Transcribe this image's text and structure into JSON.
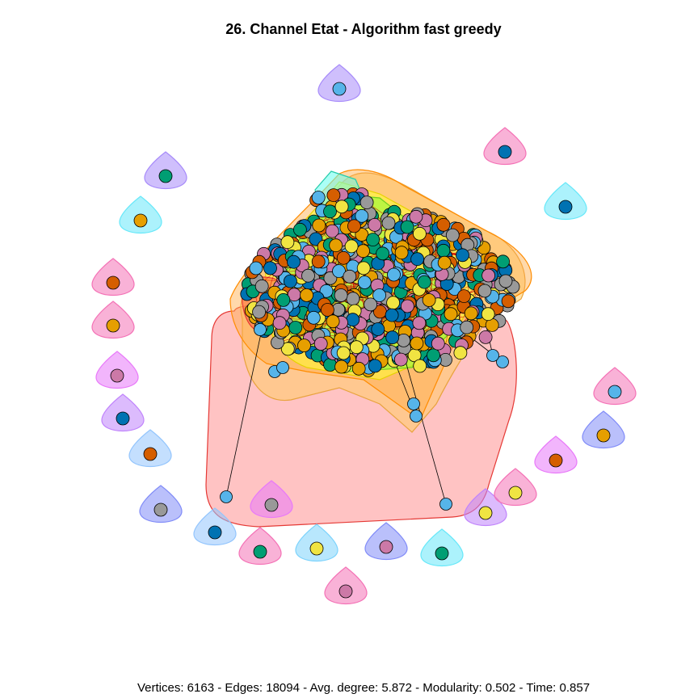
{
  "title": "26. Channel Etat - Algorithm fast greedy",
  "caption": "Vertices: 6163 - Edges: 18094 - Avg. degree: 5.872 - Modularity: 0.502 - Time: 0.857",
  "palette": {
    "node_colors": [
      "#56B4E9",
      "#E69F00",
      "#009E73",
      "#F0E442",
      "#0072B2",
      "#D55E00",
      "#CC79A7",
      "#999999"
    ],
    "hull_colors": [
      "#FF8888",
      "#FFCC66",
      "#FFFF33",
      "#88FF33",
      "#FFAA44",
      "#66FFEE"
    ],
    "edge_color": "#CC0000",
    "node_stroke": "#000000"
  },
  "isolated_modules": [
    {
      "hull": "#A78BFA",
      "node": "#56B4E9"
    },
    {
      "hull": "#F472B6",
      "node": "#0072B2"
    },
    {
      "hull": "#A78BFA",
      "node": "#009E73"
    },
    {
      "hull": "#67E8F9",
      "node": "#0072B2"
    },
    {
      "hull": "#67E8F9",
      "node": "#E69F00"
    },
    {
      "hull": "#F472B6",
      "node": "#D55E00"
    },
    {
      "hull": "#F472B6",
      "node": "#E69F00"
    },
    {
      "hull": "#E879F9",
      "node": "#CC79A7"
    },
    {
      "hull": "#C084FC",
      "node": "#0072B2"
    },
    {
      "hull": "#93C5FD",
      "node": "#D55E00"
    },
    {
      "hull": "#818CF8",
      "node": "#999999"
    },
    {
      "hull": "#93C5FD",
      "node": "#0072B2"
    },
    {
      "hull": "#E879F9",
      "node": "#999999"
    },
    {
      "hull": "#F472B6",
      "node": "#009E73"
    },
    {
      "hull": "#7DD3FC",
      "node": "#F0E442"
    },
    {
      "hull": "#F472B6",
      "node": "#CC79A7"
    },
    {
      "hull": "#818CF8",
      "node": "#CC79A7"
    },
    {
      "hull": "#67E8F9",
      "node": "#009E73"
    },
    {
      "hull": "#C084FC",
      "node": "#F0E442"
    },
    {
      "hull": "#F472B6",
      "node": "#F0E442"
    },
    {
      "hull": "#E879F9",
      "node": "#D55E00"
    },
    {
      "hull": "#818CF8",
      "node": "#E69F00"
    },
    {
      "hull": "#F472B6",
      "node": "#56B4E9"
    }
  ]
}
